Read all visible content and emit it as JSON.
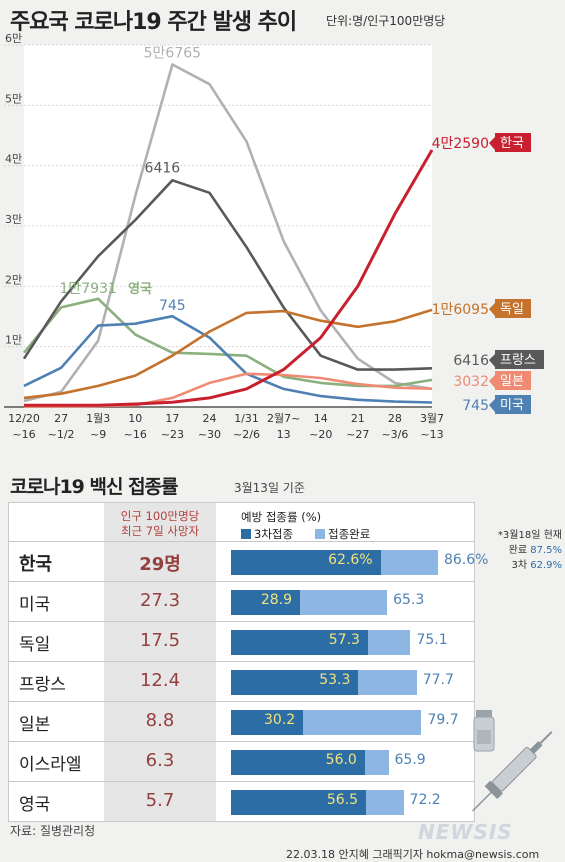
{
  "title": "주요국 코로나19 주간 발생 추이",
  "unit": "단위:명/인구100만명당",
  "chart_data": {
    "type": "line",
    "x": [
      "12/20 ~16",
      "27 ~1/2",
      "1월3 ~9",
      "10 ~16",
      "17 ~23",
      "24 ~30",
      "1/31 ~2/6",
      "2월7~ 13",
      "14 ~20",
      "21 ~27",
      "28 ~3/6",
      "3월7 ~13"
    ],
    "x_top": [
      "12/20",
      "27",
      "1월3",
      "10",
      "17",
      "24",
      "1/31",
      "2월7~",
      "14",
      "21",
      "28",
      "3월7"
    ],
    "x_bottom": [
      "~16",
      "~1/2",
      "~9",
      "~16",
      "~23",
      "~30",
      "~2/6",
      "13",
      "~20",
      "~27",
      "~3/6",
      "~13"
    ],
    "y_ticks": [
      "6만",
      "5만",
      "4만",
      "3만",
      "2만",
      "1만"
    ],
    "ylim": [
      0,
      60000
    ],
    "series": [
      {
        "name": "한국",
        "color": "#c8202f",
        "label": "4만2590",
        "values": [
          300,
          300,
          300,
          500,
          800,
          1500,
          3000,
          6200,
          11500,
          20000,
          32000,
          42590
        ]
      },
      {
        "name": "독일",
        "color": "#c4722c",
        "label": "1만6095",
        "values": [
          1500,
          2200,
          3500,
          5200,
          8500,
          12500,
          15600,
          15900,
          14300,
          13300,
          14200,
          16095
        ]
      },
      {
        "name": "프랑스",
        "color": "#595959",
        "label": "6416",
        "values": [
          8000,
          17500,
          25000,
          31000,
          37575,
          35500,
          26500,
          16500,
          8500,
          6200,
          6200,
          6416
        ]
      },
      {
        "name": "일본",
        "color": "#ef8a73",
        "label": "3032",
        "values": [
          100,
          100,
          150,
          300,
          1500,
          4000,
          5500,
          5300,
          4800,
          3800,
          3200,
          3032
        ]
      },
      {
        "name": "미국",
        "color": "#4f80b2",
        "label": "745",
        "values": [
          3500,
          6500,
          13500,
          13800,
          15052,
          11500,
          5500,
          3000,
          1800,
          1200,
          900,
          745
        ]
      },
      {
        "name": "영국",
        "color": "#8bb07e",
        "label": "1만7931",
        "values": [
          9000,
          16500,
          17931,
          12000,
          9000,
          8800,
          8500,
          5000,
          4000,
          3500,
          3500,
          4500
        ]
      },
      {
        "name": "이스라엘",
        "color": "#b1b1b1",
        "label": "5만6765",
        "values": [
          1000,
          2500,
          11000,
          35000,
          56765,
          53500,
          44000,
          27500,
          16000,
          8000,
          4000,
          3000
        ]
      }
    ]
  },
  "vaccine": {
    "title": "코로나19 백신 접종률",
    "date": "3월13일 기준",
    "deaths_header": [
      "인구 100만명당",
      "최근 7일 사망자"
    ],
    "vac_header": "예방 접종률 (%)",
    "legend": [
      {
        "label": "3차접종",
        "color": "#2d6da6"
      },
      {
        "label": "접종완료",
        "color": "#8db6e2"
      }
    ],
    "rows": [
      {
        "country": "한국",
        "deaths": "29명",
        "third": 62.6,
        "third_label": "62.6%",
        "full": 86.6,
        "full_label": "86.6%"
      },
      {
        "country": "미국",
        "deaths": "27.3",
        "third": 28.9,
        "third_label": "28.9",
        "full": 65.3,
        "full_label": "65.3"
      },
      {
        "country": "독일",
        "deaths": "17.5",
        "third": 57.3,
        "third_label": "57.3",
        "full": 75.1,
        "full_label": "75.1"
      },
      {
        "country": "프랑스",
        "deaths": "12.4",
        "third": 53.3,
        "third_label": "53.3",
        "full": 77.7,
        "full_label": "77.7"
      },
      {
        "country": "일본",
        "deaths": "8.8",
        "third": 30.2,
        "third_label": "30.2",
        "full": 79.7,
        "full_label": "79.7"
      },
      {
        "country": "이스라엘",
        "deaths": "6.3",
        "third": 56.0,
        "third_label": "56.0",
        "full": 65.9,
        "full_label": "65.9"
      },
      {
        "country": "영국",
        "deaths": "5.7",
        "third": 56.5,
        "third_label": "56.5",
        "full": 72.2,
        "full_label": "72.2"
      }
    ],
    "note": {
      "line1": "*3월18일 현재",
      "line2_label": "완료",
      "line2_value": "87.5%",
      "line3_label": "3차",
      "line3_value": "62.9%"
    }
  },
  "source": "자료: 질병관리청",
  "credit": "22.03.18 안지혜 그래픽기자  hokma@newsis.com",
  "logo": "NEWSIS"
}
